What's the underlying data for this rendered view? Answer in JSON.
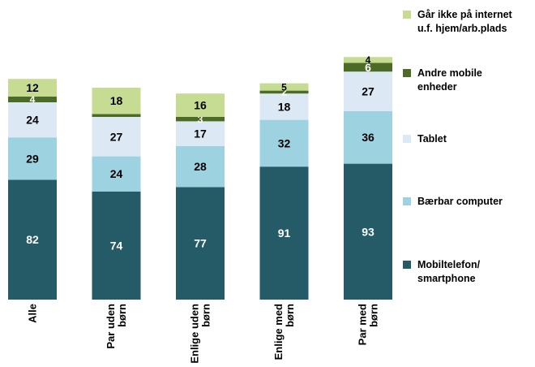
{
  "chart_data": {
    "type": "bar",
    "stacked": true,
    "categories": [
      "Alle",
      "Par uden børn",
      "Enlige uden børn",
      "Enlige med børn",
      "Par med børn"
    ],
    "category_lines": [
      [
        "Alle"
      ],
      [
        "Par uden",
        "børn"
      ],
      [
        "Enlige uden",
        "børn"
      ],
      [
        "Enlige med",
        "børn"
      ],
      [
        "Par med",
        "børn"
      ]
    ],
    "series": [
      {
        "name": "Mobiltelefon/ smartphone",
        "legend_lines": [
          "Mobiltelefon/",
          "smartphone"
        ],
        "color": "#245b66",
        "label_color": "#ffffff",
        "values": [
          82,
          74,
          77,
          91,
          93
        ]
      },
      {
        "name": "Bærbar computer",
        "legend_lines": [
          "Bærbar computer"
        ],
        "color": "#9dd3e0",
        "label_color": "#000000",
        "values": [
          29,
          24,
          28,
          32,
          36
        ]
      },
      {
        "name": "Tablet",
        "legend_lines": [
          "Tablet"
        ],
        "color": "#dde8f5",
        "label_color": "#000000",
        "values": [
          24,
          27,
          17,
          18,
          27
        ]
      },
      {
        "name": "Andre mobile enheder",
        "legend_lines": [
          "Andre mobile",
          "enheder"
        ],
        "color": "#4b6b26",
        "label_color": "#ffffff",
        "values": [
          4,
          2,
          3,
          2,
          6
        ]
      },
      {
        "name": "Går ikke på internet u.f. hjem/arb.plads",
        "legend_lines": [
          "Går ikke på internet",
          "u.f. hjem/arb.plads"
        ],
        "color": "#c7dc93",
        "label_color": "#000000",
        "values": [
          12,
          18,
          16,
          5,
          4
        ]
      }
    ],
    "hidden_labels": [
      [
        1,
        3
      ]
    ],
    "legend_position": "right",
    "grid": false,
    "title": "",
    "xlabel": "",
    "ylabel": ""
  }
}
